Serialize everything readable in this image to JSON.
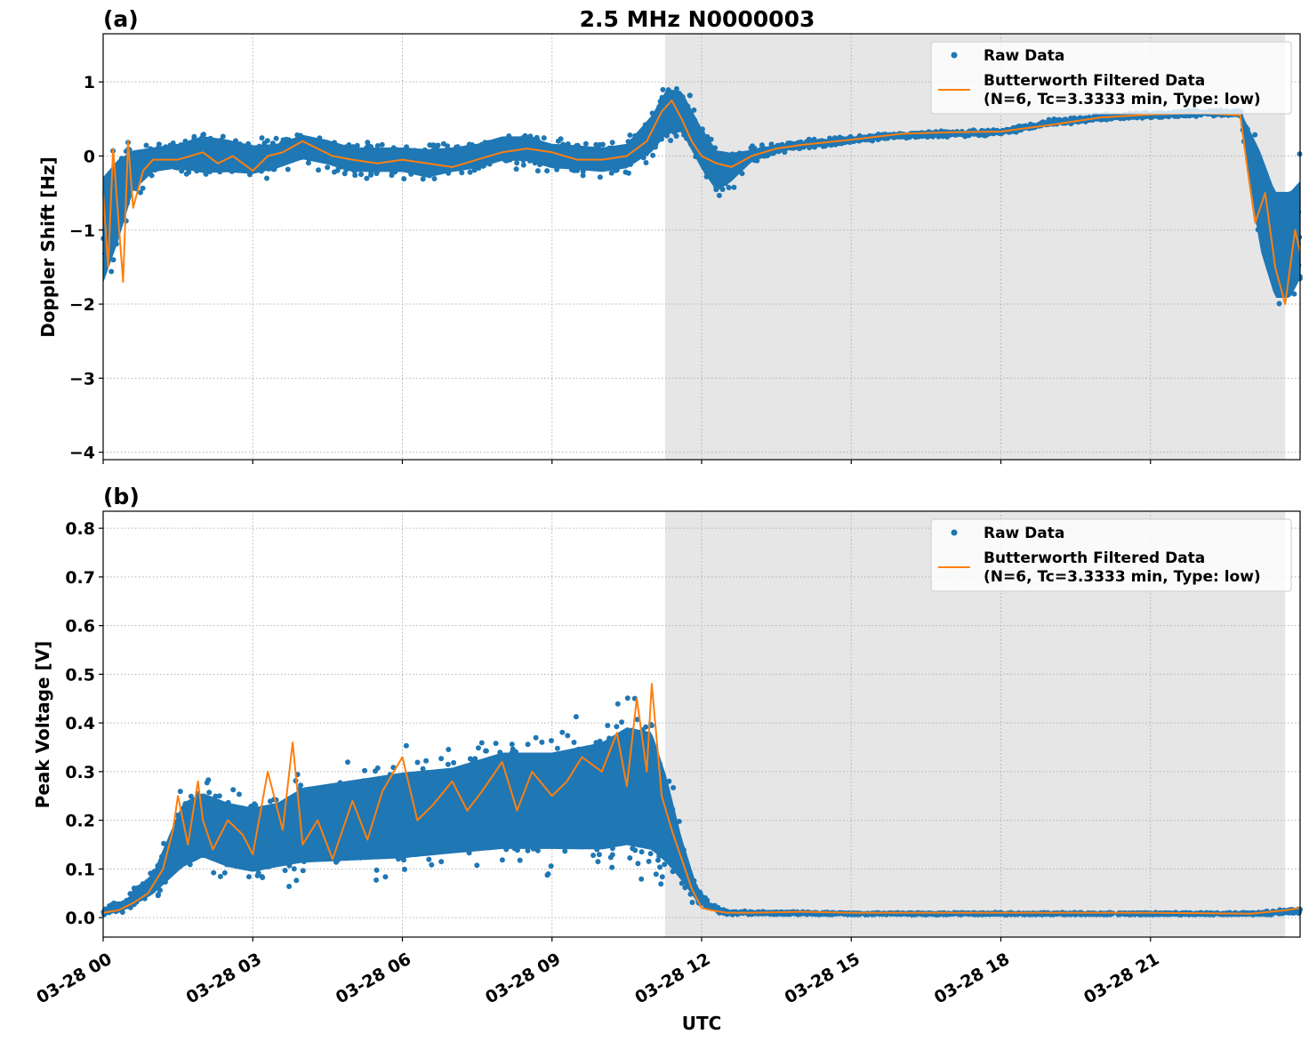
{
  "figure": {
    "title": "2.5 MHz N0000003",
    "xlabel": "UTC"
  },
  "colors": {
    "raw": "#1f77b4",
    "filtered": "#ff7f0e",
    "night_shade": "#e6e6e6"
  },
  "chart_data": [
    {
      "type": "scatter",
      "panel_label": "(a)",
      "title": "2.5 MHz N0000003",
      "xlabel": "",
      "ylabel": "Doppler Shift [Hz]",
      "xlim": [
        "03-28 00:00",
        "03-29 00:00"
      ],
      "ylim": [
        -4.1,
        1.65
      ],
      "yticks": [
        1,
        0,
        -1,
        -2,
        -3,
        -4
      ],
      "ytick_labels": [
        "1",
        "0",
        "−1",
        "−2",
        "−3",
        "−4"
      ],
      "grid": true,
      "shaded_region": {
        "start": "03-28 11:16",
        "end": "03-28 23:42"
      },
      "legend": {
        "placement": "top-right",
        "entries": [
          "Raw Data",
          "Butterworth Filtered Data",
          "(N=6, Tc=3.3333 min, Type: low)"
        ]
      },
      "series": [
        {
          "name": "Raw Data",
          "kind": "points",
          "x_hours": [
            0.0,
            0.3,
            0.6,
            1.0,
            1.5,
            2.0,
            2.5,
            3.0,
            3.5,
            4.0,
            4.5,
            5.0,
            5.5,
            6.0,
            6.5,
            7.0,
            7.5,
            8.0,
            8.5,
            9.0,
            9.5,
            10.0,
            10.5,
            11.0,
            11.3,
            11.6,
            12.0,
            12.3,
            12.6,
            13.0,
            13.5,
            14.0,
            15.0,
            16.0,
            17.0,
            18.0,
            19.0,
            20.0,
            21.0,
            22.0,
            22.8,
            23.2,
            23.5,
            23.8,
            24.0
          ],
          "center": [
            -1.0,
            -0.6,
            -0.2,
            -0.05,
            0.0,
            0.02,
            0.0,
            -0.05,
            0.0,
            0.12,
            0.05,
            -0.05,
            -0.05,
            -0.05,
            -0.1,
            -0.05,
            0.0,
            0.1,
            0.1,
            0.0,
            -0.02,
            -0.05,
            0.0,
            0.3,
            0.6,
            0.6,
            0.1,
            -0.2,
            -0.15,
            0.0,
            0.1,
            0.15,
            0.22,
            0.28,
            0.3,
            0.32,
            0.45,
            0.52,
            0.55,
            0.58,
            0.58,
            -0.6,
            -1.2,
            -1.2,
            -1.0
          ],
          "spread": [
            1.3,
            1.0,
            0.5,
            0.3,
            0.3,
            0.45,
            0.4,
            0.35,
            0.3,
            0.3,
            0.3,
            0.3,
            0.3,
            0.3,
            0.35,
            0.3,
            0.3,
            0.3,
            0.3,
            0.3,
            0.3,
            0.3,
            0.3,
            0.45,
            0.55,
            0.5,
            0.5,
            0.5,
            0.35,
            0.15,
            0.1,
            0.08,
            0.06,
            0.05,
            0.05,
            0.05,
            0.05,
            0.05,
            0.05,
            0.05,
            0.06,
            1.2,
            1.3,
            1.3,
            1.2
          ]
        },
        {
          "name": "Butterworth Filtered Data",
          "kind": "line",
          "x_hours": [
            0.0,
            0.1,
            0.2,
            0.3,
            0.4,
            0.5,
            0.6,
            0.8,
            1.0,
            1.5,
            2.0,
            2.3,
            2.6,
            3.0,
            3.3,
            3.6,
            4.0,
            4.3,
            4.6,
            5.0,
            5.5,
            6.0,
            6.5,
            7.0,
            7.5,
            8.0,
            8.5,
            9.0,
            9.5,
            10.0,
            10.5,
            10.9,
            11.2,
            11.4,
            11.6,
            11.8,
            12.0,
            12.3,
            12.6,
            13.0,
            13.5,
            14.0,
            15.0,
            16.0,
            17.0,
            18.0,
            19.0,
            20.0,
            21.0,
            22.0,
            22.8,
            22.95,
            23.1,
            23.3,
            23.5,
            23.7,
            23.9,
            24.0
          ],
          "y": [
            -0.5,
            -1.5,
            0.1,
            -0.8,
            -1.7,
            0.2,
            -0.7,
            -0.2,
            -0.05,
            -0.05,
            0.05,
            -0.1,
            0.0,
            -0.2,
            0.0,
            0.05,
            0.2,
            0.1,
            0.0,
            -0.05,
            -0.1,
            -0.05,
            -0.1,
            -0.15,
            -0.05,
            0.05,
            0.1,
            0.05,
            -0.05,
            -0.05,
            0.0,
            0.2,
            0.6,
            0.75,
            0.5,
            0.2,
            0.0,
            -0.1,
            -0.15,
            0.0,
            0.1,
            0.15,
            0.22,
            0.3,
            0.32,
            0.33,
            0.42,
            0.52,
            0.56,
            0.58,
            0.55,
            -0.2,
            -0.9,
            -0.5,
            -1.5,
            -2.0,
            -1.0,
            -1.3
          ]
        }
      ]
    },
    {
      "type": "scatter",
      "panel_label": "(b)",
      "xlabel": "UTC",
      "ylabel": "Peak Voltage [V]",
      "xlim": [
        "03-28 00:00",
        "03-29 00:00"
      ],
      "ylim": [
        -0.04,
        0.835
      ],
      "yticks": [
        0.0,
        0.1,
        0.2,
        0.3,
        0.4,
        0.5,
        0.6,
        0.7,
        0.8
      ],
      "ytick_labels": [
        "0.0",
        "0.1",
        "0.2",
        "0.3",
        "0.4",
        "0.5",
        "0.6",
        "0.7",
        "0.8"
      ],
      "xticks": [
        "03-28 00:00",
        "03-28 03:00",
        "03-28 06:00",
        "03-28 09:00",
        "03-28 12:00",
        "03-28 15:00",
        "03-28 18:00",
        "03-28 21:00"
      ],
      "xtick_labels": [
        "03-28 00",
        "03-28 03",
        "03-28 06",
        "03-28 09",
        "03-28 12",
        "03-28 15",
        "03-28 18",
        "03-28 21"
      ],
      "grid": true,
      "shaded_region": {
        "start": "03-28 11:16",
        "end": "03-28 23:42"
      },
      "legend": {
        "placement": "top-right",
        "entries": [
          "Raw Data",
          "Butterworth Filtered Data",
          "(N=6, Tc=3.3333 min, Type: low)"
        ]
      },
      "series": [
        {
          "name": "Raw Data",
          "kind": "points",
          "x_hours": [
            0.0,
            0.5,
            1.0,
            1.3,
            1.6,
            2.0,
            2.5,
            3.0,
            3.5,
            4.0,
            5.0,
            6.0,
            7.0,
            8.0,
            9.0,
            10.0,
            10.5,
            11.0,
            11.3,
            11.6,
            11.9,
            12.2,
            12.5,
            13.0,
            15.0,
            18.0,
            21.0,
            23.0,
            23.5,
            24.0
          ],
          "center": [
            0.01,
            0.03,
            0.07,
            0.12,
            0.17,
            0.19,
            0.17,
            0.16,
            0.17,
            0.19,
            0.2,
            0.21,
            0.22,
            0.24,
            0.24,
            0.25,
            0.27,
            0.26,
            0.2,
            0.12,
            0.05,
            0.02,
            0.01,
            0.01,
            0.008,
            0.008,
            0.008,
            0.008,
            0.01,
            0.015
          ],
          "spread": [
            0.01,
            0.02,
            0.04,
            0.08,
            0.12,
            0.12,
            0.12,
            0.12,
            0.12,
            0.14,
            0.15,
            0.16,
            0.16,
            0.18,
            0.18,
            0.2,
            0.22,
            0.22,
            0.16,
            0.08,
            0.03,
            0.01,
            0.005,
            0.004,
            0.003,
            0.003,
            0.003,
            0.003,
            0.006,
            0.008
          ]
        },
        {
          "name": "Butterworth Filtered Data",
          "kind": "line",
          "x_hours": [
            0.0,
            0.3,
            0.6,
            0.9,
            1.2,
            1.4,
            1.5,
            1.7,
            1.9,
            2.0,
            2.2,
            2.5,
            2.8,
            3.0,
            3.3,
            3.6,
            3.8,
            4.0,
            4.3,
            4.6,
            5.0,
            5.3,
            5.6,
            6.0,
            6.3,
            6.6,
            7.0,
            7.3,
            7.6,
            8.0,
            8.3,
            8.6,
            9.0,
            9.3,
            9.6,
            10.0,
            10.3,
            10.5,
            10.7,
            10.9,
            11.0,
            11.2,
            11.4,
            11.6,
            11.8,
            12.0,
            12.2,
            12.5,
            13.0,
            14.0,
            15.0,
            18.0,
            21.0,
            23.0,
            23.4,
            23.7,
            24.0
          ],
          "y": [
            0.01,
            0.015,
            0.03,
            0.05,
            0.1,
            0.18,
            0.25,
            0.15,
            0.28,
            0.2,
            0.14,
            0.2,
            0.17,
            0.13,
            0.3,
            0.18,
            0.36,
            0.15,
            0.2,
            0.12,
            0.24,
            0.16,
            0.26,
            0.33,
            0.2,
            0.23,
            0.28,
            0.22,
            0.26,
            0.32,
            0.22,
            0.3,
            0.25,
            0.28,
            0.33,
            0.3,
            0.38,
            0.27,
            0.45,
            0.3,
            0.48,
            0.25,
            0.18,
            0.12,
            0.06,
            0.02,
            0.015,
            0.01,
            0.01,
            0.012,
            0.01,
            0.01,
            0.01,
            0.008,
            0.012,
            0.015,
            0.02
          ]
        }
      ]
    }
  ]
}
